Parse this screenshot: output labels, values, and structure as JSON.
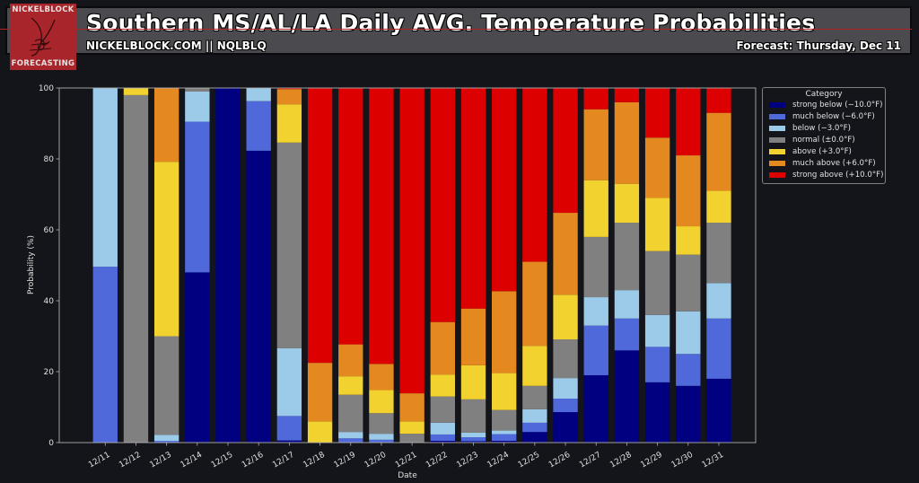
{
  "header": {
    "title": "Southern MS/AL/LA Daily AVG. Temperature Probabilities",
    "subtitle": "NICKELBLOCK.COM || NQLBLQ",
    "forecast": "Forecast: Thursday, Dec 11",
    "logo_top": "NICKELBLOCK",
    "logo_bottom": "FORECASTING"
  },
  "colors": {
    "background": "#14151a",
    "header_bg": "#4a4a4f",
    "accent_red": "#b22222",
    "axis": "#b0b0b0",
    "text": "#e0e0e0"
  },
  "chart_data": {
    "type": "bar",
    "stacked": true,
    "title": "",
    "xlabel": "Date",
    "ylabel": "Probability (%)",
    "ylim": [
      0,
      100
    ],
    "yticks": [
      0,
      20,
      40,
      60,
      80,
      100
    ],
    "grid": false,
    "legend_title": "Category",
    "legend_position": "outside-top-right",
    "categories": [
      "12/11",
      "12/12",
      "12/13",
      "12/14",
      "12/15",
      "12/16",
      "12/17",
      "12/18",
      "12/19",
      "12/20",
      "12/21",
      "12/22",
      "12/23",
      "12/24",
      "12/25",
      "12/26",
      "12/27",
      "12/28",
      "12/29",
      "12/30",
      "12/31"
    ],
    "series": [
      {
        "name": "strong below (−10.0°F)",
        "color": "#000080",
        "values": [
          0,
          0,
          0,
          48,
          100,
          82.3,
          0.6,
          0,
          0,
          0,
          0,
          0.5,
          0.4,
          0.5,
          3,
          8.6,
          19,
          26,
          17,
          16,
          18
        ]
      },
      {
        "name": "much below (−6.0°F)",
        "color": "#4f69db",
        "values": [
          49.6,
          0,
          0.5,
          42.5,
          0,
          14,
          6.9,
          0,
          1.2,
          0.8,
          0,
          1.8,
          1.1,
          1.9,
          2.6,
          3.8,
          14,
          9,
          10,
          9,
          17
        ]
      },
      {
        "name": "below (−3.0°F)",
        "color": "#9ccbea",
        "values": [
          50.4,
          0,
          1.7,
          8.5,
          0,
          3.7,
          19.1,
          0,
          1.8,
          1.7,
          0,
          3.3,
          1.3,
          1,
          3.8,
          5.8,
          8,
          8,
          9,
          12,
          10
        ]
      },
      {
        "name": "normal (±0.0°F)",
        "color": "#808080",
        "values": [
          0,
          98,
          27.8,
          1,
          0,
          0,
          58,
          0,
          10.5,
          5.8,
          2.5,
          7.4,
          9.4,
          5.8,
          6.6,
          10.9,
          17,
          19,
          18,
          16,
          17
        ]
      },
      {
        "name": "above (+3.0°F)",
        "color": "#f2d22e",
        "values": [
          0,
          2,
          49.2,
          0,
          0,
          0,
          10.8,
          6,
          5.2,
          6.5,
          3.5,
          6.2,
          9.6,
          10.4,
          11.3,
          12.6,
          16,
          11,
          15,
          8,
          9
        ]
      },
      {
        "name": "much above (+6.0°F)",
        "color": "#e3891f",
        "values": [
          0,
          0,
          20.8,
          0,
          0,
          0,
          4.3,
          16.5,
          9,
          7.4,
          7.9,
          14.8,
          16,
          23.1,
          23.7,
          23.1,
          20,
          23,
          17,
          20,
          22
        ]
      },
      {
        "name": "strong above (+10.0°F)",
        "color": "#dc0000",
        "values": [
          0,
          0,
          0,
          0,
          0,
          0,
          0.3,
          77.5,
          72.3,
          77.8,
          86.1,
          66,
          62.2,
          57.3,
          49,
          35.2,
          6,
          4,
          14,
          19,
          7
        ]
      }
    ]
  }
}
